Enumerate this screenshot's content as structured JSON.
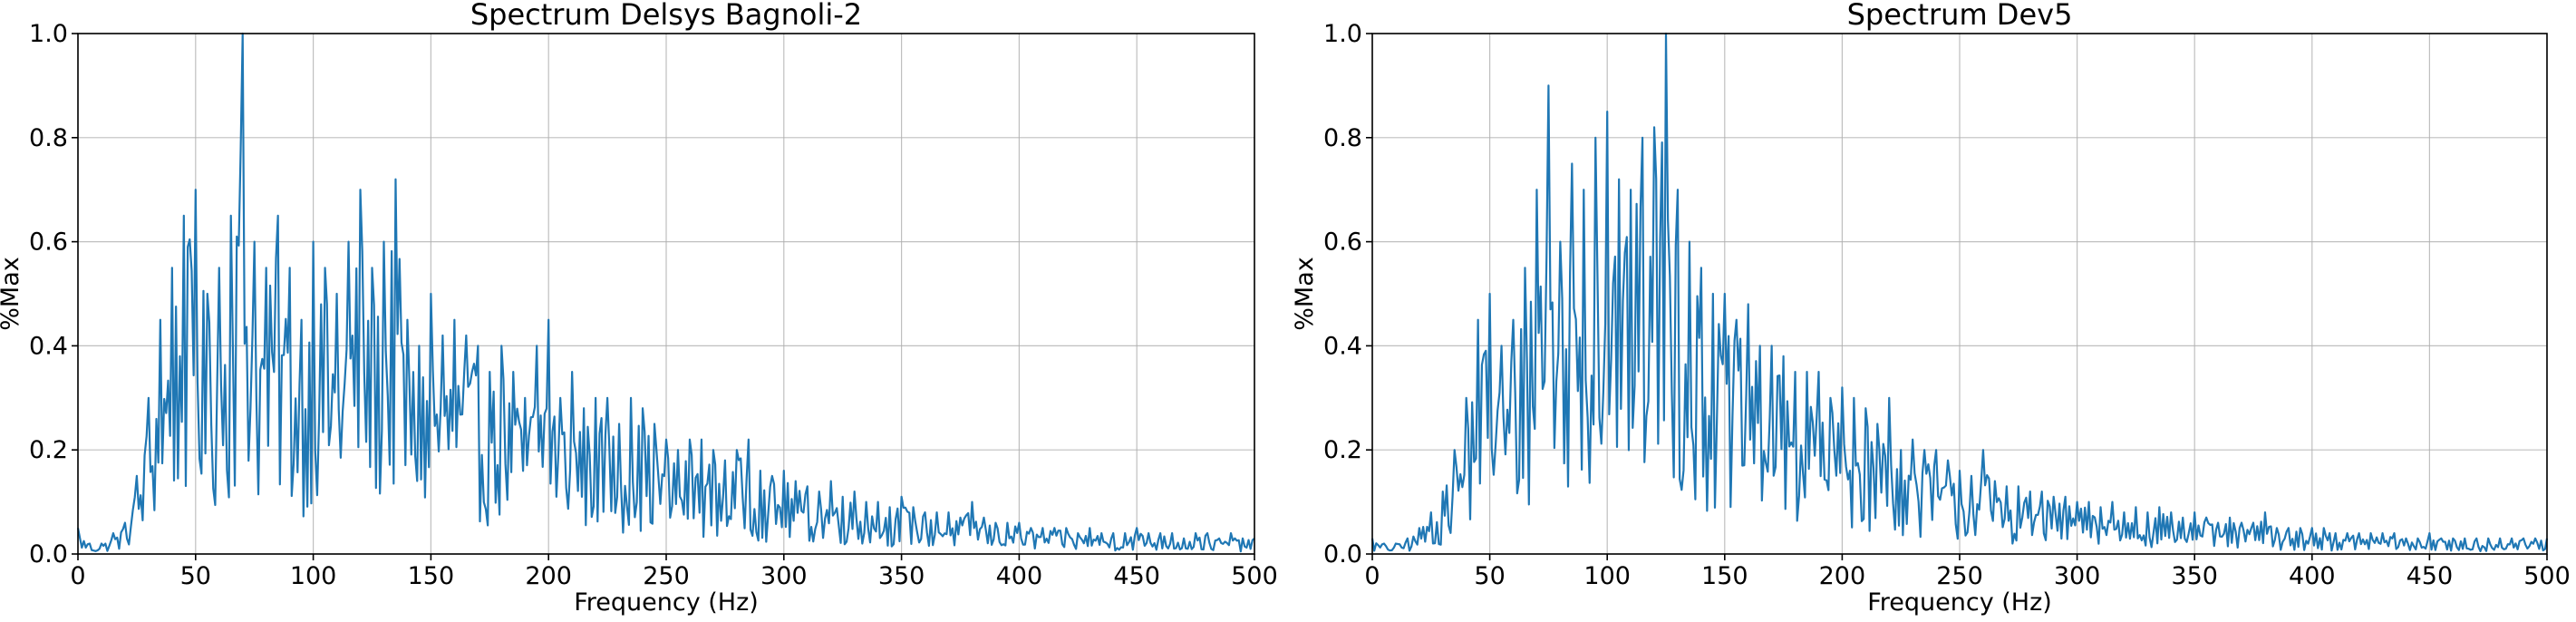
{
  "chart_data": [
    {
      "type": "line",
      "title": "Spectrum Delsys Bagnoli-2",
      "xlabel": "Frequency (Hz)",
      "ylabel": "%Max",
      "xlim": [
        0,
        500
      ],
      "ylim": [
        0.0,
        1.0
      ],
      "xticks": [
        0,
        50,
        100,
        150,
        200,
        250,
        300,
        350,
        400,
        450,
        500
      ],
      "xtick_labels": [
        "0",
        "50",
        "100",
        "150",
        "200",
        "250",
        "300",
        "350",
        "400",
        "450",
        "500"
      ],
      "yticks": [
        0.0,
        0.2,
        0.4,
        0.6,
        0.8,
        1.0
      ],
      "ytick_labels": [
        "0.0",
        "0.2",
        "0.4",
        "0.6",
        "0.8",
        "1.0"
      ],
      "grid": true,
      "color": "#1f77b4",
      "series": [
        {
          "x": [
            0,
            5,
            10,
            15,
            20,
            25,
            30,
            35,
            40,
            45,
            50,
            55,
            60,
            65,
            70,
            75,
            80,
            85,
            90,
            95,
            100,
            105,
            110,
            115,
            120,
            125,
            130,
            135,
            140,
            145,
            150,
            155,
            160,
            165,
            170,
            175,
            180,
            185,
            190,
            195,
            200,
            205,
            210,
            215,
            220,
            225,
            230,
            235,
            240,
            245,
            250,
            255,
            260,
            265,
            270,
            275,
            280,
            285,
            290,
            295,
            300,
            305,
            310,
            315,
            320,
            325,
            330,
            335,
            340,
            345,
            350,
            355,
            360,
            365,
            370,
            375,
            380,
            385,
            390,
            395,
            400,
            405,
            410,
            415,
            420,
            425,
            430,
            435,
            440,
            445,
            450,
            455,
            460,
            465,
            470,
            475,
            480,
            485,
            490,
            495,
            500
          ],
          "y": [
            0.05,
            0.02,
            0.02,
            0.04,
            0.06,
            0.15,
            0.3,
            0.45,
            0.55,
            0.65,
            0.7,
            0.5,
            0.55,
            0.65,
            1.0,
            0.6,
            0.55,
            0.65,
            0.55,
            0.45,
            0.6,
            0.55,
            0.5,
            0.6,
            0.7,
            0.55,
            0.6,
            0.72,
            0.45,
            0.4,
            0.5,
            0.42,
            0.45,
            0.42,
            0.4,
            0.35,
            0.4,
            0.35,
            0.3,
            0.4,
            0.45,
            0.3,
            0.35,
            0.28,
            0.3,
            0.3,
            0.25,
            0.3,
            0.28,
            0.25,
            0.22,
            0.2,
            0.22,
            0.22,
            0.2,
            0.18,
            0.2,
            0.22,
            0.16,
            0.15,
            0.16,
            0.14,
            0.13,
            0.12,
            0.14,
            0.11,
            0.12,
            0.1,
            0.1,
            0.09,
            0.11,
            0.09,
            0.08,
            0.08,
            0.08,
            0.07,
            0.1,
            0.07,
            0.06,
            0.06,
            0.06,
            0.05,
            0.05,
            0.05,
            0.05,
            0.04,
            0.05,
            0.04,
            0.04,
            0.04,
            0.05,
            0.04,
            0.04,
            0.04,
            0.03,
            0.04,
            0.04,
            0.03,
            0.04,
            0.03,
            0.03
          ]
        }
      ]
    },
    {
      "type": "line",
      "title": "Spectrum Dev5",
      "xlabel": "Frequency (Hz)",
      "ylabel": "%Max",
      "xlim": [
        0,
        500
      ],
      "ylim": [
        0.0,
        1.0
      ],
      "xticks": [
        0,
        50,
        100,
        150,
        200,
        250,
        300,
        350,
        400,
        450,
        500
      ],
      "xtick_labels": [
        "0",
        "50",
        "100",
        "150",
        "200",
        "250",
        "300",
        "350",
        "400",
        "450",
        "500"
      ],
      "yticks": [
        0.0,
        0.2,
        0.4,
        0.6,
        0.8,
        1.0
      ],
      "ytick_labels": [
        "0.0",
        "0.2",
        "0.4",
        "0.6",
        "0.8",
        "1.0"
      ],
      "grid": true,
      "color": "#1f77b4",
      "series": [
        {
          "x": [
            0,
            5,
            10,
            15,
            20,
            25,
            30,
            35,
            40,
            45,
            50,
            55,
            60,
            65,
            70,
            75,
            80,
            85,
            90,
            95,
            100,
            105,
            110,
            115,
            120,
            125,
            130,
            135,
            140,
            145,
            150,
            155,
            160,
            165,
            170,
            175,
            180,
            185,
            190,
            195,
            200,
            205,
            210,
            215,
            220,
            225,
            230,
            235,
            240,
            245,
            250,
            255,
            260,
            265,
            270,
            275,
            280,
            285,
            290,
            295,
            300,
            305,
            310,
            315,
            320,
            325,
            330,
            335,
            340,
            345,
            350,
            355,
            360,
            365,
            370,
            375,
            380,
            385,
            390,
            395,
            400,
            405,
            410,
            415,
            420,
            425,
            430,
            435,
            440,
            445,
            450,
            455,
            460,
            465,
            470,
            475,
            480,
            485,
            490,
            495,
            500
          ],
          "y": [
            0.03,
            0.02,
            0.02,
            0.03,
            0.05,
            0.08,
            0.12,
            0.2,
            0.3,
            0.45,
            0.5,
            0.4,
            0.45,
            0.55,
            0.7,
            0.9,
            0.6,
            0.75,
            0.7,
            0.8,
            0.85,
            0.72,
            0.7,
            0.8,
            0.82,
            1.0,
            0.7,
            0.6,
            0.55,
            0.5,
            0.5,
            0.45,
            0.48,
            0.4,
            0.4,
            0.38,
            0.35,
            0.35,
            0.35,
            0.3,
            0.32,
            0.3,
            0.28,
            0.25,
            0.3,
            0.2,
            0.22,
            0.2,
            0.2,
            0.18,
            0.16,
            0.15,
            0.2,
            0.14,
            0.13,
            0.13,
            0.12,
            0.12,
            0.11,
            0.11,
            0.1,
            0.1,
            0.09,
            0.1,
            0.08,
            0.09,
            0.08,
            0.09,
            0.08,
            0.07,
            0.08,
            0.07,
            0.06,
            0.07,
            0.06,
            0.06,
            0.08,
            0.05,
            0.05,
            0.05,
            0.05,
            0.05,
            0.04,
            0.04,
            0.04,
            0.04,
            0.04,
            0.04,
            0.03,
            0.03,
            0.04,
            0.03,
            0.03,
            0.03,
            0.03,
            0.03,
            0.03,
            0.03,
            0.03,
            0.03,
            0.03
          ]
        }
      ]
    }
  ]
}
